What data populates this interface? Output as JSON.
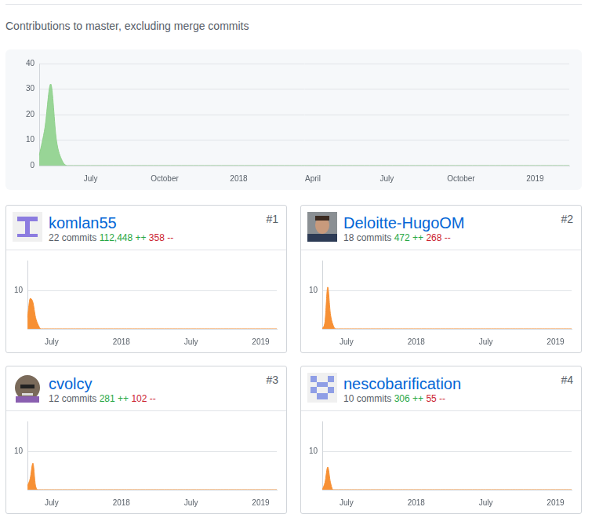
{
  "heading": "Contributions to master, excluding merge commits",
  "chart_data": [
    {
      "type": "area",
      "categories": [
        null,
        null,
        null,
        null,
        null,
        null,
        null,
        null,
        null,
        "July",
        null,
        null,
        null,
        null,
        null,
        null,
        null,
        null,
        null,
        null,
        null,
        null,
        "October",
        null,
        null,
        null,
        null,
        null,
        null,
        null,
        null,
        null,
        null,
        null,
        null,
        "2018",
        null,
        null,
        null,
        null,
        null,
        null,
        null,
        null,
        null,
        null,
        null,
        null,
        "April",
        null,
        null,
        null,
        null,
        null,
        null,
        null,
        null,
        null,
        null,
        null,
        null,
        "July",
        null,
        null,
        null,
        null,
        null,
        null,
        null,
        null,
        null,
        null,
        null,
        null,
        "October",
        null,
        null,
        null,
        null,
        null,
        null,
        null,
        null,
        null,
        null,
        null,
        null,
        "2019",
        null,
        null,
        null,
        null,
        null,
        null
      ],
      "values": [
        4,
        15,
        32,
        10,
        2,
        0,
        0,
        0,
        0,
        0,
        0,
        0,
        0,
        0,
        0,
        0,
        0,
        0,
        0,
        0,
        0,
        0,
        0,
        0,
        0,
        0,
        0,
        0,
        0,
        0,
        0,
        0,
        0,
        0,
        0,
        0,
        0,
        0,
        0,
        0,
        0,
        0,
        0,
        0,
        0,
        0,
        0,
        0,
        0,
        0,
        0,
        0,
        0,
        0,
        0,
        0,
        0,
        0,
        0,
        0,
        0,
        0,
        0,
        0,
        0,
        0,
        0,
        0,
        0,
        0,
        0,
        0,
        0,
        0,
        0,
        0,
        0,
        0,
        0,
        0,
        0,
        0,
        0,
        0,
        0,
        0,
        0,
        0,
        0,
        0,
        0,
        0,
        0,
        0
      ],
      "color": "#8ed08b",
      "ylim": [
        0,
        40
      ],
      "yticks": [
        0,
        10,
        20,
        30,
        40
      ],
      "grid": true
    },
    {
      "type": "area",
      "categories": [
        null,
        null,
        null,
        null,
        null,
        null,
        null,
        null,
        null,
        "July",
        null,
        null,
        null,
        null,
        null,
        null,
        null,
        null,
        null,
        null,
        null,
        null,
        null,
        null,
        null,
        null,
        null,
        null,
        null,
        null,
        null,
        null,
        null,
        null,
        null,
        "2018",
        null,
        null,
        null,
        null,
        null,
        null,
        null,
        null,
        null,
        null,
        null,
        null,
        null,
        null,
        null,
        null,
        null,
        null,
        null,
        null,
        null,
        null,
        null,
        null,
        null,
        "July",
        null,
        null,
        null,
        null,
        null,
        null,
        null,
        null,
        null,
        null,
        null,
        null,
        null,
        null,
        null,
        null,
        null,
        null,
        null,
        null,
        null,
        null,
        null,
        null,
        null,
        "2019",
        null,
        null,
        null,
        null,
        null,
        null
      ],
      "values": [
        3,
        8,
        7,
        3,
        1,
        0,
        0,
        0,
        0,
        0,
        0,
        0,
        0,
        0,
        0,
        0,
        0,
        0,
        0,
        0,
        0,
        0,
        0,
        0,
        0,
        0,
        0,
        0,
        0,
        0,
        0,
        0,
        0,
        0,
        0,
        0,
        0,
        0,
        0,
        0,
        0,
        0,
        0,
        0,
        0,
        0,
        0,
        0,
        0,
        0,
        0,
        0,
        0,
        0,
        0,
        0,
        0,
        0,
        0,
        0,
        0,
        0,
        0,
        0,
        0,
        0,
        0,
        0,
        0,
        0,
        0,
        0,
        0,
        0,
        0,
        0,
        0,
        0,
        0,
        0,
        0,
        0,
        0,
        0,
        0,
        0,
        0,
        0,
        0,
        0,
        0,
        0,
        0,
        0
      ],
      "color": "#f79034",
      "ylim": [
        0,
        18
      ],
      "yticks": [
        10
      ],
      "grid": true
    },
    {
      "type": "area",
      "categories": [
        null,
        null,
        null,
        null,
        null,
        null,
        null,
        null,
        null,
        "July",
        null,
        null,
        null,
        null,
        null,
        null,
        null,
        null,
        null,
        null,
        null,
        null,
        null,
        null,
        null,
        null,
        null,
        null,
        null,
        null,
        null,
        null,
        null,
        null,
        null,
        "2018",
        null,
        null,
        null,
        null,
        null,
        null,
        null,
        null,
        null,
        null,
        null,
        null,
        null,
        null,
        null,
        null,
        null,
        null,
        null,
        null,
        null,
        null,
        null,
        null,
        null,
        "July",
        null,
        null,
        null,
        null,
        null,
        null,
        null,
        null,
        null,
        null,
        null,
        null,
        null,
        null,
        null,
        null,
        null,
        null,
        null,
        null,
        null,
        null,
        null,
        null,
        null,
        "2019",
        null,
        null,
        null,
        null,
        null,
        null
      ],
      "values": [
        0,
        2,
        11,
        4,
        1,
        0,
        0,
        0,
        0,
        0,
        0,
        0,
        0,
        0,
        0,
        0,
        0,
        0,
        0,
        0,
        0,
        0,
        0,
        0,
        0,
        0,
        0,
        0,
        0,
        0,
        0,
        0,
        0,
        0,
        0,
        0,
        0,
        0,
        0,
        0,
        0,
        0,
        0,
        0,
        0,
        0,
        0,
        0,
        0,
        0,
        0,
        0,
        0,
        0,
        0,
        0,
        0,
        0,
        0,
        0,
        0,
        0,
        0,
        0,
        0,
        0,
        0,
        0,
        0,
        0,
        0,
        0,
        0,
        0,
        0,
        0,
        0,
        0,
        0,
        0,
        0,
        0,
        0,
        0,
        0,
        0,
        0,
        0,
        0,
        0,
        0,
        0,
        0,
        0
      ],
      "color": "#f79034",
      "ylim": [
        0,
        18
      ],
      "yticks": [
        10
      ],
      "grid": true
    },
    {
      "type": "area",
      "categories": [
        null,
        null,
        null,
        null,
        null,
        null,
        null,
        null,
        null,
        "July",
        null,
        null,
        null,
        null,
        null,
        null,
        null,
        null,
        null,
        null,
        null,
        null,
        null,
        null,
        null,
        null,
        null,
        null,
        null,
        null,
        null,
        null,
        null,
        null,
        null,
        "2018",
        null,
        null,
        null,
        null,
        null,
        null,
        null,
        null,
        null,
        null,
        null,
        null,
        null,
        null,
        null,
        null,
        null,
        null,
        null,
        null,
        null,
        null,
        null,
        null,
        null,
        "July",
        null,
        null,
        null,
        null,
        null,
        null,
        null,
        null,
        null,
        null,
        null,
        null,
        null,
        null,
        null,
        null,
        null,
        null,
        null,
        null,
        null,
        null,
        null,
        null,
        null,
        "2019",
        null,
        null,
        null,
        null,
        null,
        null
      ],
      "values": [
        1,
        3,
        7,
        1,
        0,
        0,
        0,
        0,
        0,
        0,
        0,
        0,
        0,
        0,
        0,
        0,
        0,
        0,
        0,
        0,
        0,
        0,
        0,
        0,
        0,
        0,
        0,
        0,
        0,
        0,
        0,
        0,
        0,
        0,
        0,
        0,
        0,
        0,
        0,
        0,
        0,
        0,
        0,
        0,
        0,
        0,
        0,
        0,
        0,
        0,
        0,
        0,
        0,
        0,
        0,
        0,
        0,
        0,
        0,
        0,
        0,
        0,
        0,
        0,
        0,
        0,
        0,
        0,
        0,
        0,
        0,
        0,
        0,
        0,
        0,
        0,
        0,
        0,
        0,
        0,
        0,
        0,
        0,
        0,
        0,
        0,
        0,
        0,
        0,
        0,
        0,
        0,
        0,
        0
      ],
      "color": "#f79034",
      "ylim": [
        0,
        18
      ],
      "yticks": [
        10
      ],
      "grid": true
    },
    {
      "type": "area",
      "categories": [
        null,
        null,
        null,
        null,
        null,
        null,
        null,
        null,
        null,
        "July",
        null,
        null,
        null,
        null,
        null,
        null,
        null,
        null,
        null,
        null,
        null,
        null,
        null,
        null,
        null,
        null,
        null,
        null,
        null,
        null,
        null,
        null,
        null,
        null,
        null,
        "2018",
        null,
        null,
        null,
        null,
        null,
        null,
        null,
        null,
        null,
        null,
        null,
        null,
        null,
        null,
        null,
        null,
        null,
        null,
        null,
        null,
        null,
        null,
        null,
        null,
        null,
        "July",
        null,
        null,
        null,
        null,
        null,
        null,
        null,
        null,
        null,
        null,
        null,
        null,
        null,
        null,
        null,
        null,
        null,
        null,
        null,
        null,
        null,
        null,
        null,
        null,
        null,
        "2019",
        null,
        null,
        null,
        null,
        null,
        null
      ],
      "values": [
        0,
        2,
        6,
        2,
        0,
        0,
        0,
        0,
        0,
        0,
        0,
        0,
        0,
        0,
        0,
        0,
        0,
        0,
        0,
        0,
        0,
        0,
        0,
        0,
        0,
        0,
        0,
        0,
        0,
        0,
        0,
        0,
        0,
        0,
        0,
        0,
        0,
        0,
        0,
        0,
        0,
        0,
        0,
        0,
        0,
        0,
        0,
        0,
        0,
        0,
        0,
        0,
        0,
        0,
        0,
        0,
        0,
        0,
        0,
        0,
        0,
        0,
        0,
        0,
        0,
        0,
        0,
        0,
        0,
        0,
        0,
        0,
        0,
        0,
        0,
        0,
        0,
        0,
        0,
        0,
        0,
        0,
        0,
        0,
        0,
        0,
        0,
        0,
        0,
        0,
        0,
        0,
        0,
        0
      ],
      "color": "#f79034",
      "ylim": [
        0,
        18
      ],
      "yticks": [
        10
      ],
      "grid": true
    }
  ],
  "contributors": [
    {
      "rank": "#1",
      "name": "komlan55",
      "commits": "22 commits",
      "additions": "112,448 ++",
      "deletions": "358 --"
    },
    {
      "rank": "#2",
      "name": "Deloitte-HugoOM",
      "commits": "18 commits",
      "additions": "472 ++",
      "deletions": "268 --"
    },
    {
      "rank": "#3",
      "name": "cvolcy",
      "commits": "12 commits",
      "additions": "281 ++",
      "deletions": "102 --"
    },
    {
      "rank": "#4",
      "name": "nescobarification",
      "commits": "10 commits",
      "additions": "306 ++",
      "deletions": "55 --"
    }
  ]
}
